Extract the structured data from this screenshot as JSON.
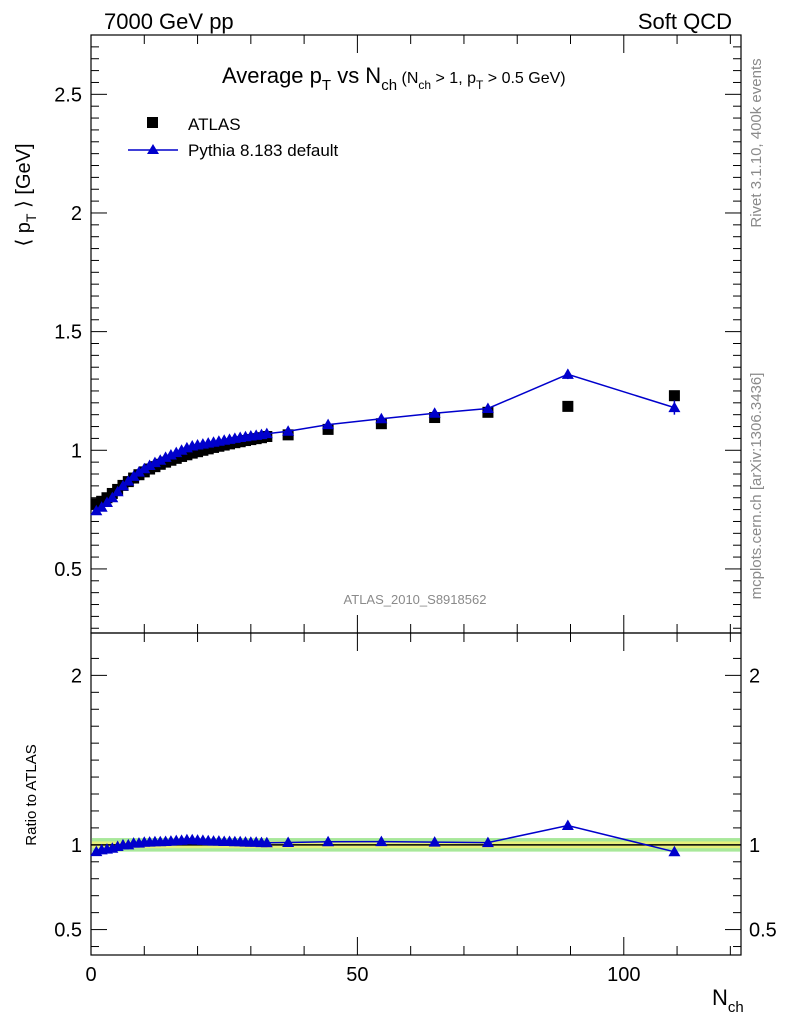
{
  "header": {
    "left": "7000 GeV pp",
    "right": "Soft QCD"
  },
  "side_labels": {
    "rivet": "Rivet 3.1.10,  400k events",
    "mcplots": "mcplots.cern.ch [arXiv:1306.3436]"
  },
  "chart_data": {
    "type": "scatter",
    "title_main": "Average p",
    "title_sub_T": "T",
    "title_vs": " vs N",
    "title_sub_ch": "ch",
    "title_cond_1": " (N",
    "title_cond_2": " > 1, p",
    "title_cond_3": " > 0.5 GeV)",
    "analysis_tag": "ATLAS_2010_S8918562",
    "xlabel": "N",
    "xlabel_sub": "ch",
    "ylabel": "⟨ p",
    "ylabel_sub": "T",
    "ylabel_tail": " ⟩  [GeV]",
    "ratio_ylabel": "Ratio to ATLAS",
    "xlim": [
      0,
      122
    ],
    "ylim": [
      0.23,
      2.75
    ],
    "ratio_ylim": [
      0.35,
      2.25
    ],
    "x_ticks": [
      "0",
      "50",
      "100"
    ],
    "y_ticks": [
      "0.5",
      "1",
      "1.5",
      "2",
      "2.5"
    ],
    "ratio_y_ticks": [
      "0.5",
      "1",
      "2"
    ],
    "legend": [
      {
        "name": "ATLAS",
        "marker": "square",
        "color": "#000000"
      },
      {
        "name": "Pythia 8.183 default",
        "marker": "triangle",
        "color": "#0000cc"
      }
    ],
    "series": [
      {
        "name": "ATLAS",
        "x": [
          1,
          2,
          3,
          4,
          5,
          6,
          7,
          8,
          9,
          10,
          11,
          12,
          13,
          14,
          15,
          16,
          17,
          18,
          19,
          20,
          21,
          22,
          23,
          24,
          25,
          26,
          27,
          28,
          29,
          30,
          31,
          32,
          33,
          37,
          44.5,
          54.5,
          64.5,
          74.5,
          89.5,
          109.5
        ],
        "y": [
          0.775,
          0.785,
          0.8,
          0.818,
          0.835,
          0.852,
          0.868,
          0.883,
          0.897,
          0.909,
          0.921,
          0.931,
          0.941,
          0.95,
          0.958,
          0.966,
          0.974,
          0.981,
          0.988,
          0.994,
          1.0,
          1.006,
          1.012,
          1.017,
          1.022,
          1.027,
          1.032,
          1.036,
          1.041,
          1.045,
          1.049,
          1.053,
          1.058,
          1.065,
          1.088,
          1.112,
          1.138,
          1.16,
          1.185,
          1.23
        ]
      },
      {
        "name": "Pythia 8.183 default",
        "x": [
          1,
          2,
          3,
          4,
          5,
          6,
          7,
          8,
          9,
          10,
          11,
          12,
          13,
          14,
          15,
          16,
          17,
          18,
          19,
          20,
          21,
          22,
          23,
          24,
          25,
          26,
          27,
          28,
          29,
          30,
          31,
          32,
          33,
          37,
          44.5,
          54.5,
          64.5,
          74.5,
          89.5,
          109.5
        ],
        "y": [
          0.745,
          0.76,
          0.78,
          0.8,
          0.825,
          0.85,
          0.87,
          0.89,
          0.908,
          0.922,
          0.936,
          0.948,
          0.958,
          0.97,
          0.98,
          0.99,
          1.0,
          1.01,
          1.018,
          1.022,
          1.026,
          1.03,
          1.034,
          1.038,
          1.042,
          1.046,
          1.05,
          1.054,
          1.057,
          1.06,
          1.063,
          1.066,
          1.07,
          1.08,
          1.108,
          1.133,
          1.156,
          1.176,
          1.32,
          1.18
        ],
        "yerr_high": {
          "89.5": 0.02,
          "109.5": 0.03
        }
      }
    ],
    "ratio": {
      "x": [
        1,
        2,
        3,
        4,
        5,
        6,
        7,
        8,
        9,
        10,
        11,
        12,
        13,
        14,
        15,
        16,
        17,
        18,
        19,
        20,
        21,
        22,
        23,
        24,
        25,
        26,
        27,
        28,
        29,
        30,
        31,
        32,
        33,
        37,
        44.5,
        54.5,
        64.5,
        74.5,
        89.5,
        109.5
      ],
      "y": [
        0.96,
        0.97,
        0.975,
        0.98,
        0.99,
        1.0,
        1.0,
        1.01,
        1.01,
        1.015,
        1.016,
        1.018,
        1.018,
        1.02,
        1.022,
        1.025,
        1.026,
        1.03,
        1.03,
        1.028,
        1.026,
        1.024,
        1.022,
        1.022,
        1.02,
        1.02,
        1.018,
        1.018,
        1.016,
        1.015,
        1.015,
        1.013,
        1.012,
        1.014,
        1.018,
        1.019,
        1.016,
        1.013,
        1.114,
        0.959
      ],
      "band_inner": 0.02,
      "band_outer": 0.04,
      "band_inner_color": "#e6f07a",
      "band_outer_color": "#a8e89a"
    }
  }
}
